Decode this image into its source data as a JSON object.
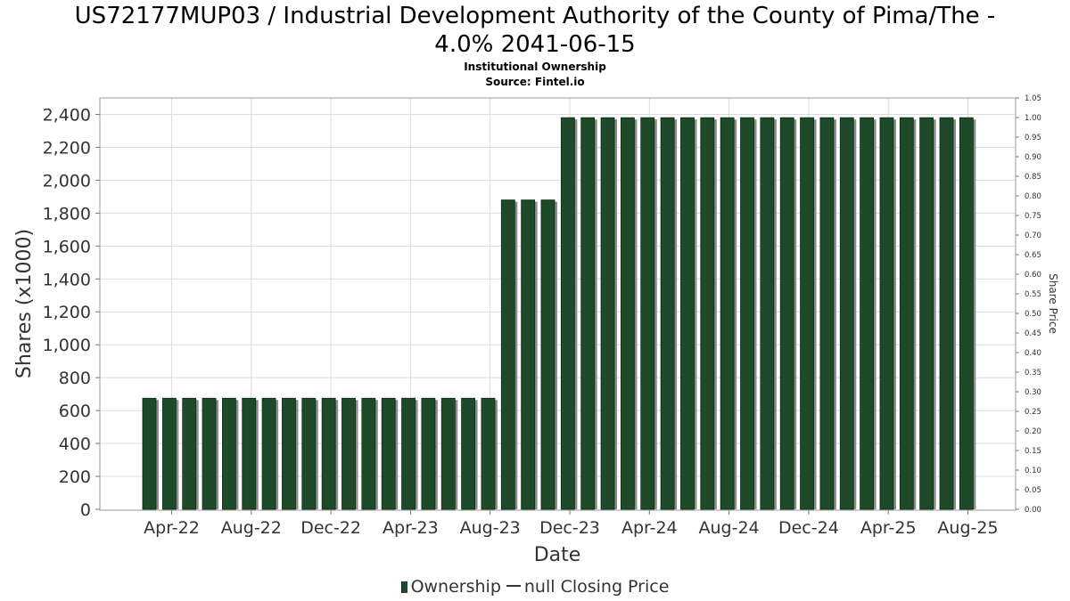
{
  "title_line1": "US72177MUP03 / Industrial Development Authority of the County of Pima/The -",
  "title_line2": "4.0% 2041-06-15",
  "subtitle": "Institutional Ownership",
  "source": "Source: Fintel.io",
  "legend": {
    "ownership": "Ownership",
    "price": "null Closing Price"
  },
  "colors": {
    "bar": "#1e4a29",
    "bar_shadow": "#8c8c8c",
    "grid": "#dcdcdc"
  },
  "chart_data": {
    "type": "bar",
    "xlabel": "Date",
    "ylabel": "Shares (x1000)",
    "y2label": "Share Price",
    "ylim": [
      0,
      2500
    ],
    "y2lim": [
      0,
      1.05
    ],
    "yticks": [
      "0",
      "200",
      "400",
      "600",
      "800",
      "1,000",
      "1,200",
      "1,400",
      "1,600",
      "1,800",
      "2,000",
      "2,200",
      "2,400"
    ],
    "y2ticks": [
      "0.00",
      "0.05",
      "0.10",
      "0.15",
      "0.20",
      "0.25",
      "0.30",
      "0.35",
      "0.40",
      "0.45",
      "0.50",
      "0.55",
      "0.60",
      "0.65",
      "0.70",
      "0.75",
      "0.80",
      "0.85",
      "0.90",
      "0.95",
      "1.00",
      "1.05"
    ],
    "xticks": [
      "Apr-22",
      "Aug-22",
      "Dec-22",
      "Apr-23",
      "Aug-23",
      "Dec-23",
      "Apr-24",
      "Aug-24",
      "Dec-24",
      "Apr-25",
      "Aug-25"
    ],
    "grid": true,
    "legend_position": "bottom",
    "series": [
      {
        "name": "Ownership",
        "values": [
          675,
          675,
          675,
          675,
          675,
          675,
          675,
          675,
          675,
          675,
          675,
          675,
          675,
          675,
          675,
          675,
          675,
          675,
          1880,
          1880,
          1880,
          2380,
          2380,
          2380,
          2380,
          2380,
          2380,
          2380,
          2380,
          2380,
          2380,
          2380,
          2380,
          2380,
          2380,
          2380,
          2380,
          2380,
          2380,
          2380,
          2380,
          2380
        ]
      }
    ]
  }
}
